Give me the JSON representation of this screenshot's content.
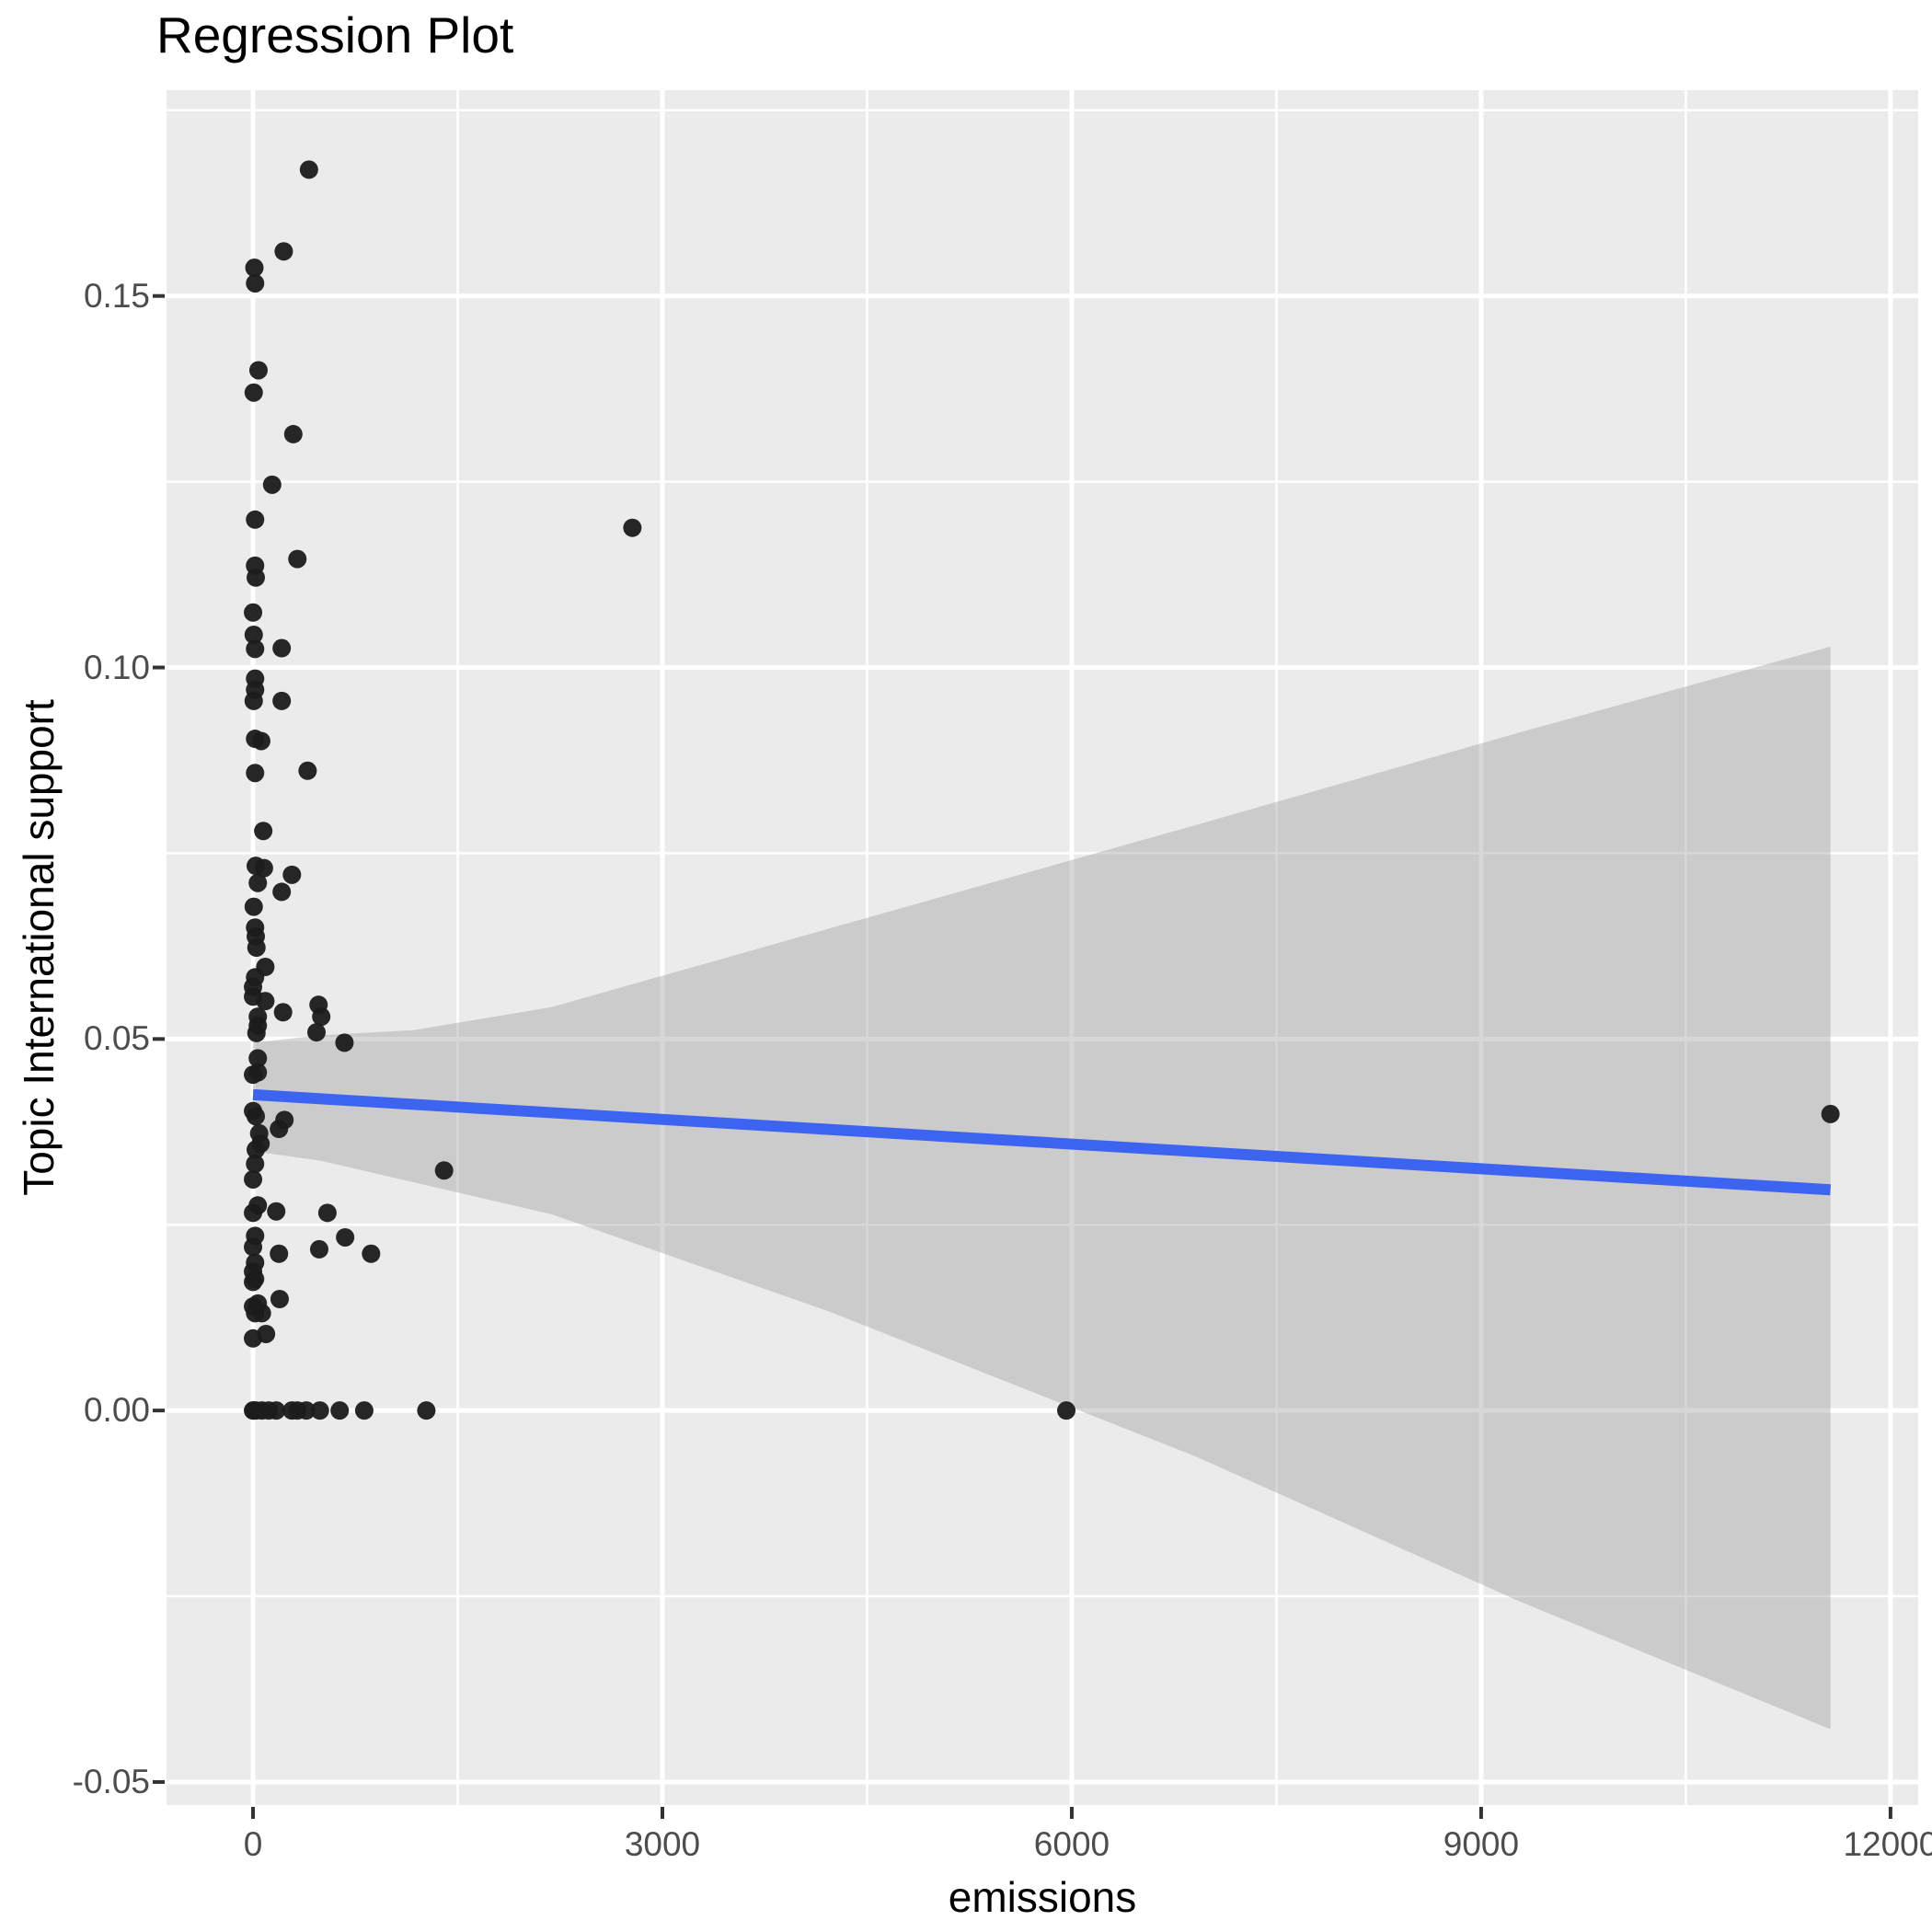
{
  "chart_data": {
    "type": "scatter",
    "title": "Regression Plot",
    "xlabel": "emissions",
    "ylabel": "Topic International support",
    "xlim": [
      -634,
      12203
    ],
    "ylim": [
      -0.0531,
      0.1777
    ],
    "x_ticks": [
      0,
      3000,
      6000,
      9000,
      12000
    ],
    "x_tick_labels": [
      "0",
      "3000",
      "6000",
      "9000",
      "12000"
    ],
    "x_minor_ticks": [
      1500,
      4500,
      7500,
      10500
    ],
    "y_ticks": [
      -0.05,
      0.0,
      0.05,
      0.1,
      0.15
    ],
    "y_tick_labels": [
      "-0.05",
      "0.00",
      "0.05",
      "0.10",
      "0.15"
    ],
    "y_minor_ticks": [
      -0.025,
      0.025,
      0.075,
      0.125,
      0.175
    ],
    "layout_hints": {
      "legend": "none",
      "grid": "major+minor",
      "panel_background": "gray",
      "theme": "ggplot-gray"
    },
    "colors": {
      "point": "#1b1b1b",
      "regression_line": "#3D64F0",
      "ci_band": "#A0A0A0",
      "panel": "#EBEBEB",
      "gridline": "#FFFFFF",
      "tick_mark": "#333333",
      "tick_text": "#4D4D4D",
      "title_text": "#000000"
    },
    "regression_line": {
      "x": [
        0,
        11560
      ],
      "y": [
        0.0425,
        0.0297
      ]
    },
    "ci_band": {
      "x": [
        0,
        500,
        1180,
        2190,
        4210,
        6910,
        9270,
        11560
      ],
      "upper": [
        0.0495,
        0.0505,
        0.0512,
        0.0543,
        0.0648,
        0.0788,
        0.0912,
        0.1028
      ],
      "lower": [
        0.0349,
        0.0336,
        0.0307,
        0.0264,
        0.0134,
        -0.0062,
        -0.0256,
        -0.0429
      ]
    },
    "points": [
      [
        410,
        0.167
      ],
      [
        225,
        0.156
      ],
      [
        10,
        0.1538
      ],
      [
        15,
        0.1517
      ],
      [
        40,
        0.14
      ],
      [
        5,
        0.137
      ],
      [
        295,
        0.1314
      ],
      [
        140,
        0.1246
      ],
      [
        15,
        0.1199
      ],
      [
        2780,
        0.1188
      ],
      [
        325,
        0.1146
      ],
      [
        15,
        0.1137
      ],
      [
        20,
        0.1121
      ],
      [
        0,
        0.1074
      ],
      [
        5,
        0.1044
      ],
      [
        15,
        0.1025
      ],
      [
        210,
        0.1026
      ],
      [
        15,
        0.0985
      ],
      [
        15,
        0.097
      ],
      [
        5,
        0.0955
      ],
      [
        210,
        0.0955
      ],
      [
        15,
        0.0904
      ],
      [
        60,
        0.0901
      ],
      [
        15,
        0.0858
      ],
      [
        400,
        0.0861
      ],
      [
        75,
        0.078
      ],
      [
        20,
        0.0733
      ],
      [
        80,
        0.073
      ],
      [
        35,
        0.071
      ],
      [
        285,
        0.0721
      ],
      [
        210,
        0.0698
      ],
      [
        5,
        0.0678
      ],
      [
        15,
        0.065
      ],
      [
        20,
        0.0638
      ],
      [
        25,
        0.0623
      ],
      [
        90,
        0.0597
      ],
      [
        15,
        0.0583
      ],
      [
        0,
        0.057
      ],
      [
        0,
        0.0557
      ],
      [
        90,
        0.0551
      ],
      [
        220,
        0.0536
      ],
      [
        480,
        0.0546
      ],
      [
        500,
        0.053
      ],
      [
        465,
        0.0509
      ],
      [
        35,
        0.053
      ],
      [
        35,
        0.0518
      ],
      [
        25,
        0.0508
      ],
      [
        670,
        0.0495
      ],
      [
        35,
        0.0474
      ],
      [
        35,
        0.0455
      ],
      [
        0,
        0.0452
      ],
      [
        0,
        0.0403
      ],
      [
        20,
        0.0396
      ],
      [
        230,
        0.0391
      ],
      [
        190,
        0.0379
      ],
      [
        45,
        0.0373
      ],
      [
        55,
        0.0359
      ],
      [
        20,
        0.0351
      ],
      [
        15,
        0.0332
      ],
      [
        0,
        0.0311
      ],
      [
        1400,
        0.0323
      ],
      [
        35,
        0.0276
      ],
      [
        0,
        0.0266
      ],
      [
        170,
        0.0268
      ],
      [
        545,
        0.0266
      ],
      [
        15,
        0.0235
      ],
      [
        0,
        0.022
      ],
      [
        675,
        0.0233
      ],
      [
        485,
        0.0217
      ],
      [
        190,
        0.0211
      ],
      [
        865,
        0.0211
      ],
      [
        15,
        0.0199
      ],
      [
        0,
        0.0187
      ],
      [
        15,
        0.0177
      ],
      [
        0,
        0.0173
      ],
      [
        195,
        0.015
      ],
      [
        35,
        0.0144
      ],
      [
        0,
        0.014
      ],
      [
        15,
        0.0131
      ],
      [
        65,
        0.0131
      ],
      [
        95,
        0.0103
      ],
      [
        0,
        0.0097
      ],
      [
        0,
        0
      ],
      [
        5,
        0
      ],
      [
        20,
        0
      ],
      [
        65,
        0
      ],
      [
        115,
        0
      ],
      [
        170,
        0
      ],
      [
        285,
        0
      ],
      [
        325,
        0
      ],
      [
        390,
        0
      ],
      [
        490,
        0
      ],
      [
        635,
        0
      ],
      [
        815,
        0
      ],
      [
        1270,
        0
      ],
      [
        5960,
        0
      ],
      [
        11560,
        0.0399
      ]
    ]
  }
}
